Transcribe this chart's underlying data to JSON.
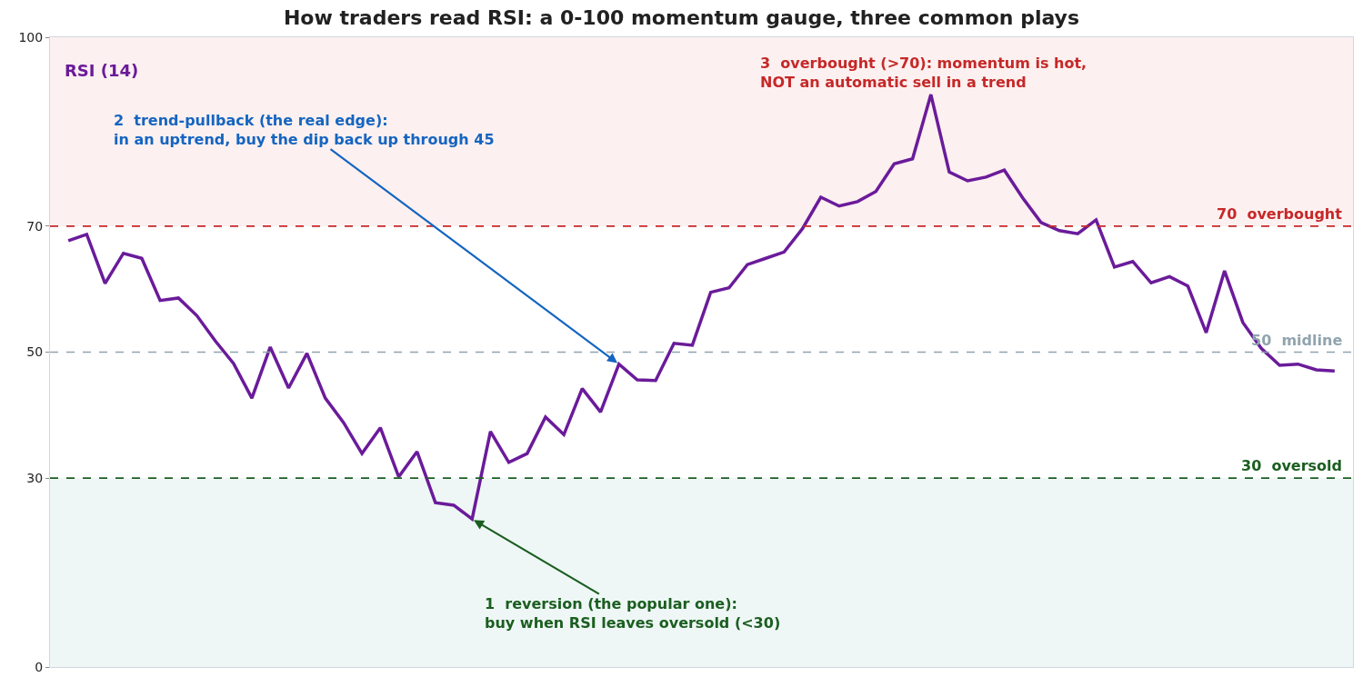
{
  "chart_data": {
    "type": "line",
    "title": "How traders read RSI: a 0-100 momentum gauge, three common plays",
    "categories": [
      null,
      null,
      null,
      null,
      null,
      null,
      null,
      null,
      null,
      null,
      null,
      null,
      null,
      null,
      null,
      null,
      null,
      null,
      null,
      null,
      null,
      null,
      null,
      null,
      null,
      null,
      null,
      null,
      null,
      null,
      null,
      null,
      null,
      null,
      null,
      null,
      null,
      null,
      null,
      null,
      null,
      null,
      null,
      null,
      null,
      null,
      null,
      null,
      null,
      null,
      null,
      null,
      null,
      null,
      null,
      null,
      null,
      null,
      null,
      null,
      null,
      null,
      null,
      null,
      null,
      null,
      null,
      null,
      null,
      null
    ],
    "series": [
      {
        "name": "RSI (14)",
        "color": "#6a1b9a",
        "values": [
          67.7,
          68.7,
          60.9,
          65.7,
          64.9,
          58.2,
          58.6,
          55.8,
          51.8,
          48.2,
          42.7,
          50.8,
          44.3,
          49.8,
          42.7,
          38.8,
          33.9,
          38.0,
          30.2,
          34.2,
          26.1,
          25.7,
          23.5,
          37.4,
          32.5,
          33.9,
          39.7,
          36.9,
          44.2,
          40.5,
          48.1,
          45.6,
          45.5,
          51.4,
          51.1,
          59.5,
          60.2,
          63.9,
          64.9,
          65.9,
          69.6,
          74.6,
          73.2,
          73.9,
          75.5,
          79.9,
          80.7,
          90.9,
          78.6,
          77.2,
          77.8,
          78.9,
          74.5,
          70.6,
          69.3,
          68.8,
          71.0,
          63.5,
          64.4,
          61.0,
          62.0,
          60.5,
          53.1,
          62.9,
          54.7,
          50.6,
          47.9,
          48.1,
          47.2,
          47.0
        ]
      }
    ],
    "ylim": [
      0,
      100
    ],
    "yticks": [
      0,
      30,
      50,
      70,
      100
    ],
    "ref_lines": [
      {
        "axis": "y",
        "value": 70,
        "label": "70  overbought",
        "color": "#c62828",
        "line_style": "dashed"
      },
      {
        "axis": "y",
        "value": 50,
        "label": "50  midline",
        "color": "#90a4ae",
        "line_style": "dashed"
      },
      {
        "axis": "y",
        "value": 30,
        "label": "30  oversold",
        "color": "#1b5e20",
        "line_style": "dashed"
      }
    ],
    "bands": [
      {
        "axis": "y",
        "from": 70,
        "to": 100,
        "color": "#fdf0f0"
      },
      {
        "axis": "y",
        "from": 0,
        "to": 30,
        "color": "#eef7f5"
      }
    ],
    "annotations": [
      "1  reversion (the popular one):\nbuy when RSI leaves oversold (<30)",
      "2  trend-pullback (the real edge):\nin an uptrend, buy the dip back up through 45",
      "3  overbought (>70): momentum is hot,\nNOT an automatic sell in a trend"
    ],
    "tick_labels": "y",
    "grid": false,
    "legend": false,
    "line_style": "solid",
    "marker": "none"
  }
}
